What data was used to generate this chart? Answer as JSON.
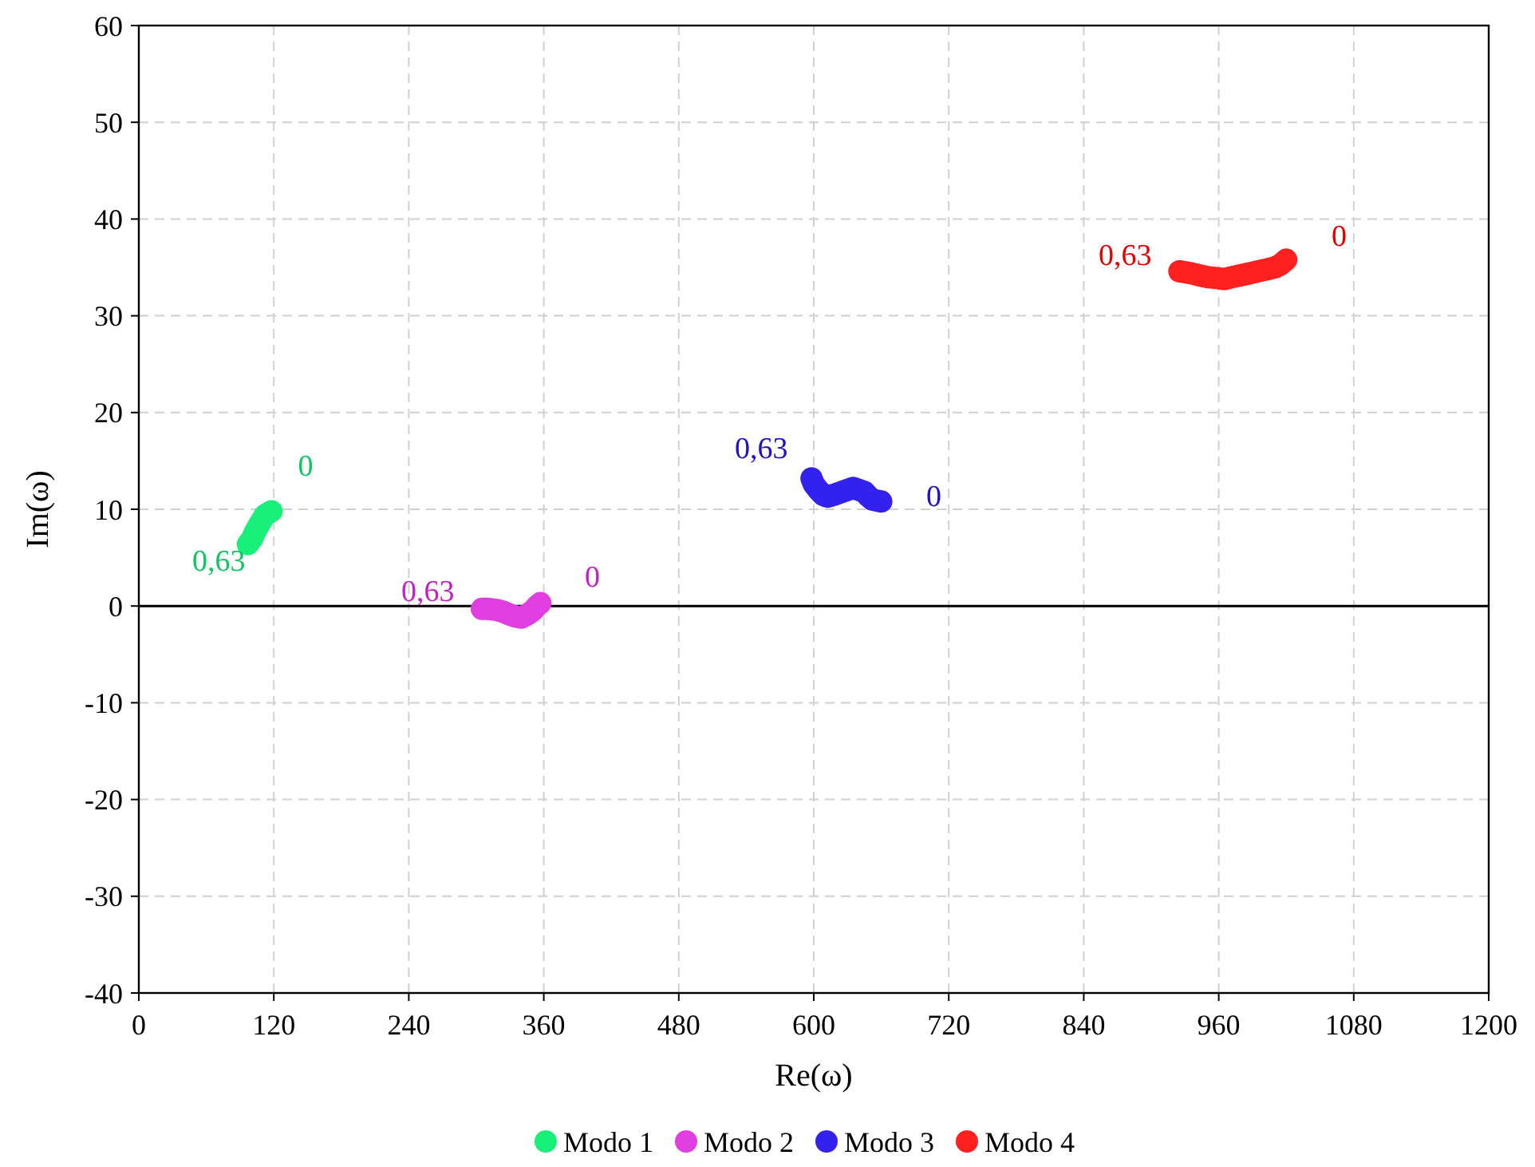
{
  "chart_data": {
    "type": "line",
    "xlabel": "Re(ω)",
    "ylabel": "Im(ω)",
    "xlim": [
      0,
      1200
    ],
    "xticks": [
      0,
      120,
      240,
      360,
      480,
      600,
      720,
      840,
      960,
      1080,
      1200
    ],
    "ylim": [
      -40,
      60
    ],
    "yticks": [
      -40,
      -30,
      -20,
      -10,
      0,
      10,
      20,
      30,
      40,
      50,
      60
    ],
    "grid": true,
    "legend": "bottom",
    "line_style": "solid",
    "ref_lines": [
      {
        "axis": "y",
        "value": 0,
        "color": "#000000"
      }
    ],
    "series": [
      {
        "name": "Modo 1",
        "color": "#19f07a",
        "x": [
          118,
          115,
          112,
          109,
          106,
          103,
          101,
          99,
          97
        ],
        "values": [
          9.8,
          9.6,
          9.4,
          8.8,
          8.2,
          7.6,
          7.0,
          6.7,
          6.4
        ]
      },
      {
        "name": "Modo 2",
        "color": "#e03ee0",
        "x": [
          357,
          354,
          350,
          345,
          340,
          335,
          330,
          324,
          318,
          311,
          305
        ],
        "values": [
          0.3,
          0,
          -0.5,
          -0.9,
          -1.2,
          -1.1,
          -0.9,
          -0.6,
          -0.4,
          -0.3,
          -0.3
        ]
      },
      {
        "name": "Modo 3",
        "color": "#3322ee",
        "x": [
          660,
          656,
          652,
          648,
          645,
          640,
          635,
          630,
          625,
          618,
          612,
          608,
          604,
          600,
          598
        ],
        "values": [
          10.8,
          10.9,
          11.0,
          11.4,
          11.8,
          12.0,
          12.2,
          12.0,
          11.8,
          11.5,
          11.3,
          11.5,
          12.0,
          12.6,
          13.2
        ]
      },
      {
        "name": "Modo 4",
        "color": "#ff2020",
        "x": [
          1020,
          1015,
          1010,
          1003,
          995,
          988,
          980,
          972,
          965,
          958,
          950,
          942,
          935,
          930,
          925
        ],
        "values": [
          35.8,
          35.3,
          35.0,
          34.8,
          34.6,
          34.4,
          34.2,
          34.0,
          33.8,
          33.9,
          34.0,
          34.2,
          34.4,
          34.5,
          34.6
        ]
      }
    ],
    "annotations": [
      {
        "text": "0",
        "x": 118,
        "y": 9.8
      },
      {
        "text": "0,63",
        "x": 97,
        "y": 6.4
      },
      {
        "text": "0",
        "x": 357,
        "y": 0.3
      },
      {
        "text": "0,63",
        "x": 305,
        "y": -0.3
      },
      {
        "text": "0,63",
        "x": 598,
        "y": 13.2
      },
      {
        "text": "0",
        "x": 660,
        "y": 10.8
      },
      {
        "text": "0,63",
        "x": 925,
        "y": 34.6
      },
      {
        "text": "0",
        "x": 1020,
        "y": 35.8
      }
    ]
  }
}
